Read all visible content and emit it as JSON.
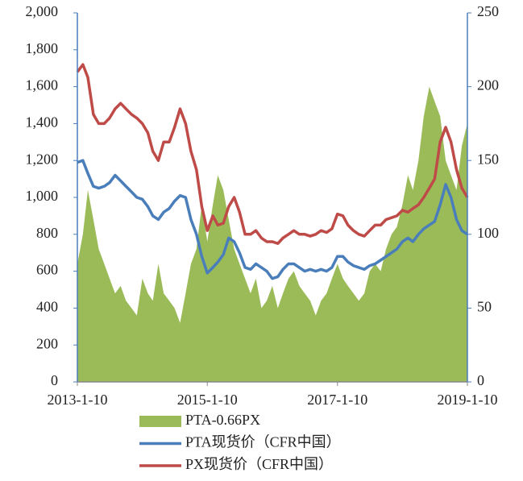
{
  "chart_data": {
    "type": "line",
    "x": [
      "2013-1-10",
      "2013-2-10",
      "2013-3-10",
      "2013-4-10",
      "2013-5-10",
      "2013-6-10",
      "2013-7-10",
      "2013-8-10",
      "2013-9-10",
      "2013-10-10",
      "2013-11-10",
      "2013-12-10",
      "2014-1-10",
      "2014-2-10",
      "2014-3-10",
      "2014-4-10",
      "2014-5-10",
      "2014-6-10",
      "2014-7-10",
      "2014-8-10",
      "2014-9-10",
      "2014-10-10",
      "2014-11-10",
      "2014-12-10",
      "2015-1-10",
      "2015-2-10",
      "2015-3-10",
      "2015-4-10",
      "2015-5-10",
      "2015-6-10",
      "2015-7-10",
      "2015-8-10",
      "2015-9-10",
      "2015-10-10",
      "2015-11-10",
      "2015-12-10",
      "2016-1-10",
      "2016-2-10",
      "2016-3-10",
      "2016-4-10",
      "2016-5-10",
      "2016-6-10",
      "2016-7-10",
      "2016-8-10",
      "2016-9-10",
      "2016-10-10",
      "2016-11-10",
      "2016-12-10",
      "2017-1-10",
      "2017-2-10",
      "2017-3-10",
      "2017-4-10",
      "2017-5-10",
      "2017-6-10",
      "2017-7-10",
      "2017-8-10",
      "2017-9-10",
      "2017-10-10",
      "2017-11-10",
      "2017-12-10",
      "2018-1-10",
      "2018-2-10",
      "2018-3-10",
      "2018-4-10",
      "2018-5-10",
      "2018-6-10",
      "2018-7-10",
      "2018-8-10",
      "2018-9-10",
      "2018-10-10",
      "2018-11-10",
      "2018-12-10",
      "2019-1-10"
    ],
    "series": [
      {
        "name": "PTA-0.66PX",
        "color": "#9bbb59",
        "kind": "area",
        "axis": "y2",
        "values": [
          80,
          100,
          130,
          110,
          90,
          80,
          70,
          60,
          65,
          55,
          50,
          45,
          70,
          60,
          55,
          80,
          60,
          55,
          50,
          40,
          60,
          80,
          90,
          120,
          95,
          120,
          140,
          130,
          110,
          90,
          80,
          70,
          60,
          70,
          50,
          55,
          65,
          50,
          60,
          70,
          75,
          65,
          60,
          55,
          45,
          55,
          60,
          70,
          80,
          70,
          65,
          60,
          55,
          60,
          75,
          80,
          75,
          90,
          100,
          105,
          120,
          140,
          130,
          150,
          180,
          200,
          190,
          180,
          150,
          140,
          130,
          160,
          175
        ]
      },
      {
        "name": "PTA现货价（CFR中国）",
        "color": "#4a7ebb",
        "kind": "line",
        "values": [
          1190,
          1200,
          1130,
          1060,
          1050,
          1060,
          1080,
          1120,
          1090,
          1060,
          1030,
          1000,
          990,
          950,
          900,
          880,
          920,
          940,
          980,
          1010,
          1000,
          880,
          800,
          680,
          590,
          620,
          650,
          690,
          780,
          760,
          700,
          620,
          610,
          640,
          620,
          600,
          560,
          570,
          610,
          640,
          640,
          620,
          600,
          610,
          600,
          610,
          600,
          620,
          680,
          680,
          650,
          630,
          620,
          610,
          630,
          640,
          660,
          680,
          700,
          720,
          760,
          780,
          760,
          800,
          830,
          850,
          870,
          960,
          1070,
          1000,
          880,
          820,
          800
        ]
      },
      {
        "name": "PX现货价（CFR中国）",
        "color": "#be4b48",
        "kind": "line",
        "values": [
          1680,
          1720,
          1650,
          1450,
          1400,
          1400,
          1430,
          1480,
          1510,
          1480,
          1450,
          1430,
          1400,
          1350,
          1250,
          1200,
          1300,
          1300,
          1380,
          1480,
          1400,
          1250,
          1150,
          950,
          820,
          900,
          850,
          860,
          950,
          1000,
          920,
          800,
          800,
          820,
          780,
          760,
          760,
          750,
          780,
          800,
          820,
          800,
          800,
          790,
          800,
          820,
          810,
          830,
          910,
          900,
          850,
          820,
          800,
          790,
          820,
          850,
          850,
          880,
          890,
          900,
          930,
          920,
          940,
          960,
          1000,
          1050,
          1100,
          1300,
          1380,
          1300,
          1150,
          1050,
          1000
        ]
      }
    ],
    "xlim": [
      "2013-1-10",
      "2019-1-10"
    ],
    "xticks": [
      "2013-1-10",
      "2015-1-10",
      "2017-1-10",
      "2019-1-10"
    ],
    "ylim": [
      0,
      2000
    ],
    "yticks": [
      0,
      200,
      400,
      600,
      800,
      {
        "value": 1000,
        "label": "1,000"
      },
      {
        "value": 1200,
        "label": "1,200"
      },
      {
        "value": 1400,
        "label": "1,400"
      },
      {
        "value": 1600,
        "label": "1,600"
      },
      {
        "value": 1800,
        "label": "1,800"
      },
      {
        "value": 2000,
        "label": "2,000"
      }
    ],
    "y2lim": [
      0,
      250
    ],
    "y2ticks": [
      0,
      50,
      100,
      150,
      200,
      250
    ],
    "legend": "bottom"
  }
}
